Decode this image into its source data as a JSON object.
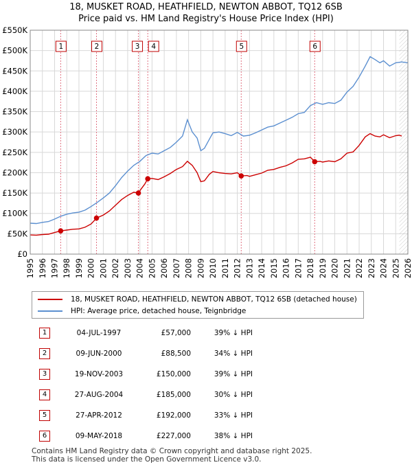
{
  "title_line1": "18, MUSKET ROAD, HEATHFIELD, NEWTON ABBOT, TQ12 6SB",
  "title_line2": "Price paid vs. HM Land Registry's House Price Index (HPI)",
  "colors": {
    "property": "#cc0000",
    "hpi": "#5b8fd0",
    "grid": "#d8d8d8",
    "vline": "#e07080",
    "hatch": "#aaaaaa"
  },
  "chart_data": {
    "type": "line",
    "title": "18, MUSKET ROAD, HEATHFIELD, NEWTON ABBOT, TQ12 6SB",
    "subtitle": "Price paid vs. HM Land Registry's House Price Index (HPI)",
    "xlabel": "",
    "ylabel": "",
    "xlim": [
      1995,
      2026
    ],
    "ylim": [
      0,
      550000
    ],
    "x_ticks": [
      "1995",
      "1996",
      "1997",
      "1998",
      "1999",
      "2000",
      "2001",
      "2002",
      "2003",
      "2004",
      "2005",
      "2006",
      "2007",
      "2008",
      "2009",
      "2010",
      "2011",
      "2012",
      "2013",
      "2014",
      "2015",
      "2016",
      "2017",
      "2018",
      "2019",
      "2020",
      "2021",
      "2022",
      "2023",
      "2024",
      "2025",
      "2026"
    ],
    "y_ticks": [
      {
        "value": 0,
        "label": "£0"
      },
      {
        "value": 50000,
        "label": "£50K"
      },
      {
        "value": 100000,
        "label": "£100K"
      },
      {
        "value": 150000,
        "label": "£150K"
      },
      {
        "value": 200000,
        "label": "£200K"
      },
      {
        "value": 250000,
        "label": "£250K"
      },
      {
        "value": 300000,
        "label": "£300K"
      },
      {
        "value": 350000,
        "label": "£350K"
      },
      {
        "value": 400000,
        "label": "£400K"
      },
      {
        "value": 450000,
        "label": "£450K"
      },
      {
        "value": 500000,
        "label": "£500K"
      },
      {
        "value": 550000,
        "label": "£550K"
      }
    ],
    "forecast_start": 2025.3,
    "series": [
      {
        "name": "18, MUSKET ROAD, HEATHFIELD, NEWTON ABBOT, TQ12 6SB (detached house)",
        "points": [
          [
            1995,
            47000
          ],
          [
            1995.5,
            46500
          ],
          [
            1996,
            48000
          ],
          [
            1996.5,
            49000
          ],
          [
            1997,
            53000
          ],
          [
            1997.5,
            57000
          ],
          [
            1998,
            59000
          ],
          [
            1998.5,
            61000
          ],
          [
            1999,
            62000
          ],
          [
            1999.5,
            66000
          ],
          [
            2000,
            74000
          ],
          [
            2000.45,
            88500
          ],
          [
            2001,
            96000
          ],
          [
            2001.5,
            106000
          ],
          [
            2002,
            120000
          ],
          [
            2002.5,
            134000
          ],
          [
            2003,
            144000
          ],
          [
            2003.5,
            152000
          ],
          [
            2003.88,
            150000
          ],
          [
            2004.1,
            160000
          ],
          [
            2004.4,
            172000
          ],
          [
            2004.65,
            185000
          ],
          [
            2005,
            186000
          ],
          [
            2005.5,
            183000
          ],
          [
            2006,
            190000
          ],
          [
            2006.5,
            198000
          ],
          [
            2007,
            208000
          ],
          [
            2007.5,
            215000
          ],
          [
            2007.9,
            228000
          ],
          [
            2008.3,
            218000
          ],
          [
            2008.7,
            200000
          ],
          [
            2009,
            178000
          ],
          [
            2009.3,
            180000
          ],
          [
            2009.7,
            196000
          ],
          [
            2010,
            203000
          ],
          [
            2010.5,
            200000
          ],
          [
            2011,
            198000
          ],
          [
            2011.5,
            197000
          ],
          [
            2012,
            200000
          ],
          [
            2012.32,
            192000
          ],
          [
            2012.8,
            193000
          ],
          [
            2013,
            191000
          ],
          [
            2013.5,
            195000
          ],
          [
            2014,
            199000
          ],
          [
            2014.5,
            206000
          ],
          [
            2015,
            208000
          ],
          [
            2015.5,
            213000
          ],
          [
            2016,
            217000
          ],
          [
            2016.5,
            224000
          ],
          [
            2017,
            233000
          ],
          [
            2017.5,
            234000
          ],
          [
            2018,
            238000
          ],
          [
            2018.35,
            227000
          ],
          [
            2018.8,
            228000
          ],
          [
            2019,
            226000
          ],
          [
            2019.5,
            229000
          ],
          [
            2020,
            227000
          ],
          [
            2020.5,
            234000
          ],
          [
            2021,
            248000
          ],
          [
            2021.5,
            251000
          ],
          [
            2022,
            267000
          ],
          [
            2022.5,
            288000
          ],
          [
            2022.9,
            296000
          ],
          [
            2023.3,
            290000
          ],
          [
            2023.7,
            288000
          ],
          [
            2024,
            293000
          ],
          [
            2024.5,
            286000
          ],
          [
            2025,
            291000
          ],
          [
            2025.3,
            292000
          ],
          [
            2025.5,
            290000
          ]
        ]
      },
      {
        "name": "HPI: Average price, detached house, Teignbridge",
        "points": [
          [
            1995,
            76000
          ],
          [
            1995.5,
            75000
          ],
          [
            1996,
            78000
          ],
          [
            1996.5,
            80000
          ],
          [
            1997,
            86000
          ],
          [
            1997.5,
            93000
          ],
          [
            1998,
            98000
          ],
          [
            1998.5,
            101000
          ],
          [
            1999,
            103000
          ],
          [
            1999.5,
            108000
          ],
          [
            2000,
            117000
          ],
          [
            2000.5,
            127000
          ],
          [
            2001,
            138000
          ],
          [
            2001.5,
            150000
          ],
          [
            2002,
            168000
          ],
          [
            2002.5,
            188000
          ],
          [
            2003,
            204000
          ],
          [
            2003.5,
            218000
          ],
          [
            2004,
            228000
          ],
          [
            2004.5,
            242000
          ],
          [
            2005,
            248000
          ],
          [
            2005.5,
            246000
          ],
          [
            2006,
            254000
          ],
          [
            2006.5,
            262000
          ],
          [
            2007,
            275000
          ],
          [
            2007.5,
            290000
          ],
          [
            2007.9,
            330000
          ],
          [
            2008.3,
            300000
          ],
          [
            2008.7,
            285000
          ],
          [
            2009,
            254000
          ],
          [
            2009.3,
            260000
          ],
          [
            2009.7,
            282000
          ],
          [
            2010,
            298000
          ],
          [
            2010.5,
            300000
          ],
          [
            2011,
            296000
          ],
          [
            2011.5,
            291000
          ],
          [
            2012,
            299000
          ],
          [
            2012.5,
            290000
          ],
          [
            2013,
            292000
          ],
          [
            2013.5,
            298000
          ],
          [
            2014,
            305000
          ],
          [
            2014.5,
            312000
          ],
          [
            2015,
            315000
          ],
          [
            2015.5,
            322000
          ],
          [
            2016,
            329000
          ],
          [
            2016.5,
            336000
          ],
          [
            2017,
            345000
          ],
          [
            2017.5,
            348000
          ],
          [
            2018,
            365000
          ],
          [
            2018.5,
            372000
          ],
          [
            2019,
            368000
          ],
          [
            2019.5,
            372000
          ],
          [
            2020,
            370000
          ],
          [
            2020.5,
            378000
          ],
          [
            2021,
            398000
          ],
          [
            2021.5,
            412000
          ],
          [
            2022,
            435000
          ],
          [
            2022.5,
            462000
          ],
          [
            2022.9,
            485000
          ],
          [
            2023.3,
            478000
          ],
          [
            2023.7,
            470000
          ],
          [
            2024,
            475000
          ],
          [
            2024.5,
            462000
          ],
          [
            2025,
            470000
          ],
          [
            2025.5,
            472000
          ],
          [
            2026,
            470000
          ]
        ]
      }
    ],
    "sales": [
      {
        "id": "1",
        "year": 1997.5,
        "price": 57000
      },
      {
        "id": "2",
        "year": 2000.44,
        "price": 88500
      },
      {
        "id": "3",
        "year": 2003.88,
        "price": 150000
      },
      {
        "id": "4",
        "year": 2004.65,
        "price": 185000
      },
      {
        "id": "5",
        "year": 2012.32,
        "price": 192000
      },
      {
        "id": "6",
        "year": 2018.35,
        "price": 227000
      }
    ]
  },
  "legend": {
    "property": "18, MUSKET ROAD, HEATHFIELD, NEWTON ABBOT, TQ12 6SB (detached house)",
    "hpi": "HPI: Average price, detached house, Teignbridge"
  },
  "transactions": [
    {
      "num": "1",
      "date": "04-JUL-1997",
      "price": "£57,000",
      "hpi": "39% ↓ HPI"
    },
    {
      "num": "2",
      "date": "09-JUN-2000",
      "price": "£88,500",
      "hpi": "34% ↓ HPI"
    },
    {
      "num": "3",
      "date": "19-NOV-2003",
      "price": "£150,000",
      "hpi": "39% ↓ HPI"
    },
    {
      "num": "4",
      "date": "27-AUG-2004",
      "price": "£185,000",
      "hpi": "30% ↓ HPI"
    },
    {
      "num": "5",
      "date": "27-APR-2012",
      "price": "£192,000",
      "hpi": "33% ↓ HPI"
    },
    {
      "num": "6",
      "date": "09-MAY-2018",
      "price": "£227,000",
      "hpi": "38% ↓ HPI"
    }
  ],
  "footer": {
    "line1": "Contains HM Land Registry data © Crown copyright and database right 2025.",
    "line2": "This data is licensed under the Open Government Licence v3.0."
  }
}
